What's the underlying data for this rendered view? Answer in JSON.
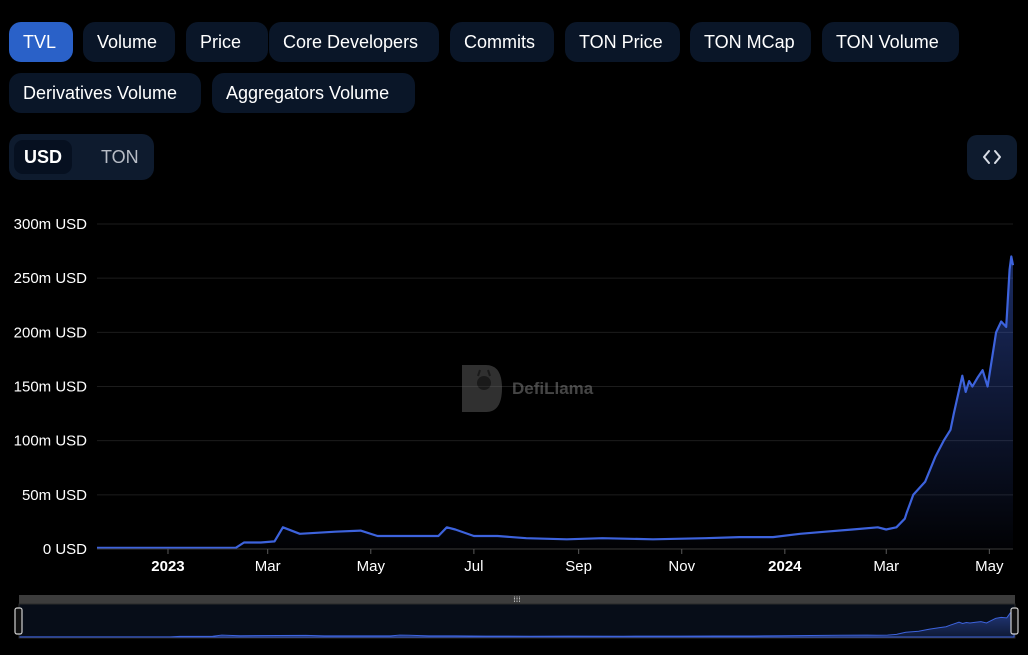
{
  "tabs": [
    {
      "label": "TVL",
      "active": true
    },
    {
      "label": "Volume"
    },
    {
      "label": "Price"
    },
    {
      "label": "Core Developers"
    },
    {
      "label": "Commits"
    },
    {
      "label": "TON Price"
    },
    {
      "label": "TON MCap"
    },
    {
      "label": "TON Volume"
    },
    {
      "label": "Derivatives Volume"
    },
    {
      "label": "Aggregators Volume"
    }
  ],
  "currency_toggle": {
    "options": [
      "USD",
      "TON"
    ],
    "selected": "USD"
  },
  "embed_icon": "code-brackets-icon",
  "watermark": {
    "text": "DefiLlama",
    "icon": "llama-logo-icon"
  },
  "colors": {
    "line": "#3d63dd",
    "active_tab": "#2a61c8",
    "tab_bg": "#0a1628",
    "grid": "#1c1c1c"
  },
  "chart_data": {
    "type": "area",
    "title": "",
    "xlabel": "",
    "ylabel": "",
    "ylim": [
      0,
      300
    ],
    "y_unit": "m USD",
    "y_ticks": [
      "0 USD",
      "50m USD",
      "100m USD",
      "150m USD",
      "200m USD",
      "250m USD",
      "300m USD"
    ],
    "x_ticks": [
      "2023",
      "Mar",
      "May",
      "Jul",
      "Sep",
      "Nov",
      "2024",
      "Mar",
      "May"
    ],
    "grid": true,
    "series": [
      {
        "values_in": "millions USD",
        "x": [
          "2022-11-20",
          "2023-01-01",
          "2023-02-10",
          "2023-02-15",
          "2023-02-25",
          "2023-03-05",
          "2023-03-10",
          "2023-03-20",
          "2023-04-10",
          "2023-04-25",
          "2023-05-05",
          "2023-05-20",
          "2023-06-10",
          "2023-06-15",
          "2023-06-20",
          "2023-07-01",
          "2023-07-15",
          "2023-08-01",
          "2023-08-25",
          "2023-09-15",
          "2023-10-15",
          "2023-11-15",
          "2023-12-05",
          "2023-12-25",
          "2024-01-10",
          "2024-01-25",
          "2024-02-10",
          "2024-02-25",
          "2024-03-01",
          "2024-03-07",
          "2024-03-12",
          "2024-03-13",
          "2024-03-17",
          "2024-03-24",
          "2024-03-30",
          "2024-04-04",
          "2024-04-08",
          "2024-04-10",
          "2024-04-15",
          "2024-04-17",
          "2024-04-19",
          "2024-04-21",
          "2024-04-24",
          "2024-04-27",
          "2024-04-30",
          "2024-05-02",
          "2024-05-05",
          "2024-05-08",
          "2024-05-11",
          "2024-05-13",
          "2024-05-14",
          "2024-05-15"
        ],
        "values": [
          1,
          1,
          1,
          6,
          6,
          7,
          20,
          14,
          16,
          17,
          12,
          12,
          12,
          20,
          18,
          12,
          12,
          10,
          9,
          10,
          9,
          10,
          11,
          11,
          14,
          16,
          18,
          20,
          18,
          20,
          28,
          33,
          50,
          62,
          85,
          100,
          110,
          125,
          160,
          145,
          155,
          150,
          158,
          165,
          150,
          170,
          200,
          210,
          205,
          258,
          270,
          262
        ]
      }
    ]
  }
}
